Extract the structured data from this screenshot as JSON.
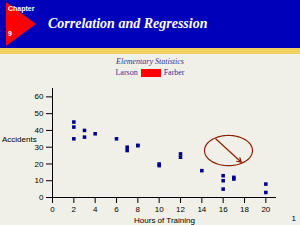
{
  "chart_data": {
    "type": "scatter",
    "title": "Correlation and Regression",
    "subtitle": "Elementary Statistics",
    "xlabel": "Hours of Training",
    "ylabel": "Accidents",
    "annotations": [
      "Chapter",
      "9",
      "Larson",
      "Farber",
      "1"
    ],
    "x": [
      2,
      2,
      2,
      3,
      3,
      4,
      6,
      7,
      7,
      8,
      8,
      10,
      10,
      12,
      12,
      14,
      16,
      16,
      16,
      17,
      17,
      20,
      20
    ],
    "values": [
      45,
      42,
      35,
      40,
      36,
      38,
      35,
      30,
      28,
      31,
      31,
      20,
      19,
      26,
      24,
      16,
      13,
      10,
      5,
      12,
      11,
      8,
      3
    ],
    "color": "#00008B",
    "marker": "square",
    "xlim": [
      0,
      21
    ],
    "xticks": [
      0,
      2,
      4,
      6,
      8,
      10,
      12,
      14,
      16,
      18,
      20
    ],
    "ylim": [
      0,
      65
    ],
    "yticks": [
      0,
      10,
      20,
      30,
      40,
      50,
      60
    ],
    "grid": false,
    "ellipse": {
      "cx": 16.5,
      "cy": 28,
      "width": 4.5,
      "height": 18
    },
    "arrow": {
      "x1": 15.3,
      "y1": 35,
      "x2": 17.7,
      "y2": 21
    }
  }
}
